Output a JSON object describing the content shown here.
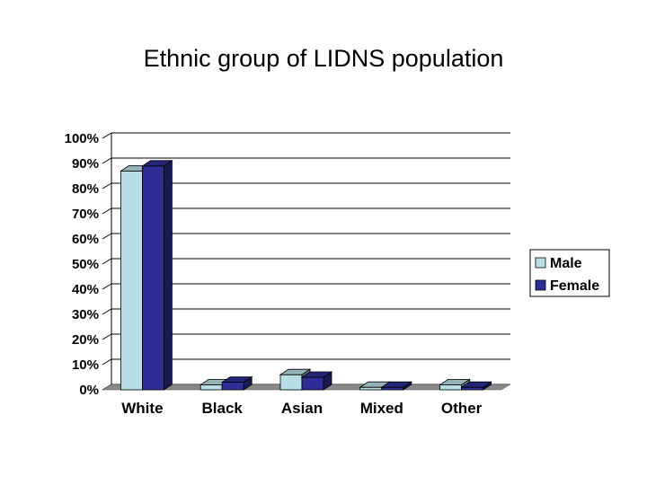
{
  "title": "Ethnic group of LIDNS population",
  "chart_data": {
    "type": "bar",
    "title": "Ethnic group of LIDNS population",
    "categories": [
      "White",
      "Black",
      "Asian",
      "Mixed",
      "Other"
    ],
    "series": [
      {
        "name": "Male",
        "values": [
          87,
          2,
          6,
          1,
          2
        ],
        "color": "#b8e0e4"
      },
      {
        "name": "Female",
        "values": [
          89,
          3,
          5,
          1,
          1
        ],
        "color": "#2e2e96"
      }
    ],
    "ylim": [
      0,
      100
    ],
    "yticks": [
      "0%",
      "10%",
      "20%",
      "30%",
      "40%",
      "50%",
      "60%",
      "70%",
      "80%",
      "90%",
      "100%"
    ],
    "xlabel": "",
    "ylabel": "",
    "grid": true,
    "legend_position": "right",
    "three_d": true
  }
}
